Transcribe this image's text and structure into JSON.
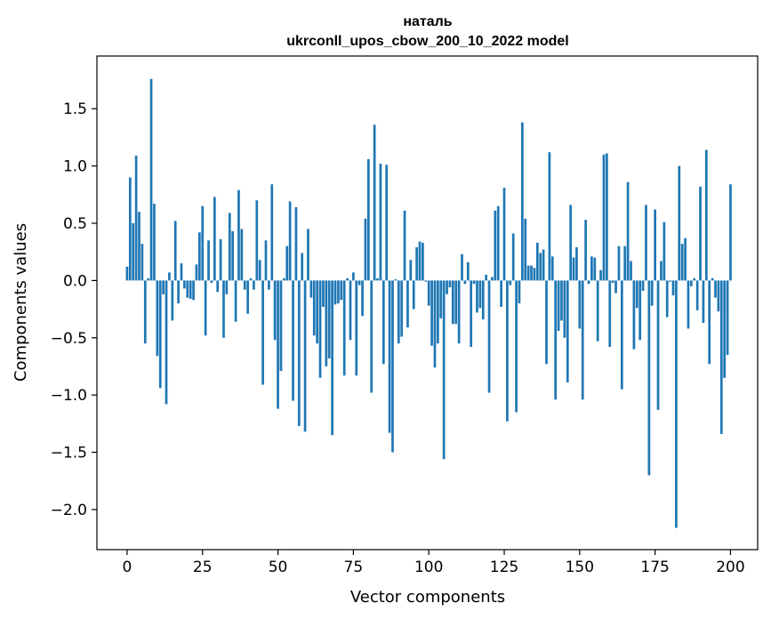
{
  "chart_data": {
    "type": "bar",
    "title_line1": "наталь",
    "title_line2": "ukrconll_upos_cbow_200_10_2022 model",
    "xlabel": "Vector components",
    "ylabel": "Components values",
    "xlim": [
      -10,
      209
    ],
    "ylim": [
      -2.35,
      1.96
    ],
    "xticks": [
      0,
      25,
      50,
      75,
      100,
      125,
      150,
      175,
      200
    ],
    "yticks": [
      -2.0,
      -1.5,
      -1.0,
      -0.5,
      0.0,
      0.5,
      1.0,
      1.5
    ],
    "ytick_labels": [
      "−2.0",
      "−1.5",
      "−1.0",
      "−0.5",
      "0.0",
      "0.5",
      "1.0",
      "1.5"
    ],
    "bar_color": "#1f77b4",
    "values": [
      0.12,
      0.9,
      0.5,
      1.09,
      0.6,
      0.32,
      -0.55,
      0.02,
      1.76,
      0.67,
      -0.66,
      -0.94,
      -0.12,
      -1.08,
      0.07,
      -0.35,
      0.52,
      -0.2,
      0.15,
      -0.07,
      -0.15,
      -0.16,
      -0.17,
      0.14,
      0.42,
      0.65,
      -0.48,
      0.35,
      -0.02,
      0.73,
      -0.1,
      0.36,
      -0.5,
      -0.12,
      0.59,
      0.43,
      -0.36,
      0.79,
      0.45,
      -0.08,
      -0.29,
      0.02,
      -0.08,
      0.7,
      0.18,
      -0.91,
      0.35,
      -0.08,
      0.84,
      -0.52,
      -1.12,
      -0.79,
      0.02,
      0.3,
      0.69,
      -1.05,
      0.64,
      -1.27,
      0.24,
      -1.32,
      0.45,
      -0.15,
      -0.48,
      -0.55,
      -0.85,
      -0.23,
      -0.75,
      -0.68,
      -1.35,
      -0.21,
      -0.2,
      -0.17,
      -0.83,
      0.02,
      -0.52,
      0.07,
      -0.83,
      -0.04,
      -0.31,
      0.54,
      1.06,
      -0.98,
      1.36,
      0.02,
      1.02,
      -0.73,
      1.01,
      -1.33,
      -1.5,
      0.01,
      -0.55,
      -0.49,
      0.61,
      -0.41,
      0.18,
      -0.25,
      0.29,
      0.34,
      0.33,
      -0.01,
      -0.22,
      -0.57,
      -0.76,
      -0.55,
      -0.33,
      -1.56,
      -0.12,
      -0.06,
      -0.38,
      -0.38,
      -0.55,
      0.23,
      -0.03,
      0.16,
      -0.58,
      -0.03,
      -0.28,
      -0.24,
      -0.34,
      0.05,
      -0.98,
      0.03,
      0.61,
      0.65,
      -0.23,
      0.81,
      -1.23,
      -0.04,
      0.41,
      -1.15,
      -0.2,
      1.38,
      0.54,
      0.13,
      0.13,
      0.11,
      0.33,
      0.24,
      0.27,
      -0.73,
      1.12,
      0.21,
      -1.04,
      -0.44,
      -0.35,
      -0.5,
      -0.89,
      0.66,
      0.2,
      0.29,
      -0.42,
      -1.04,
      0.53,
      -0.03,
      0.21,
      0.2,
      -0.53,
      0.09,
      1.1,
      1.11,
      -0.58,
      -0.02,
      -0.11,
      0.3,
      -0.95,
      0.3,
      0.86,
      0.17,
      -0.6,
      -0.24,
      -0.52,
      -0.09,
      0.66,
      -1.7,
      -0.22,
      0.62,
      -1.13,
      0.17,
      0.51,
      -0.32,
      -0.01,
      -0.13,
      -2.16,
      1.0,
      0.32,
      0.37,
      -0.42,
      -0.05,
      0.02,
      -0.26,
      0.82,
      -0.37,
      1.14,
      -0.73,
      0.02,
      -0.15,
      -0.27,
      -1.34,
      -0.85,
      -0.65,
      0.84
    ]
  }
}
